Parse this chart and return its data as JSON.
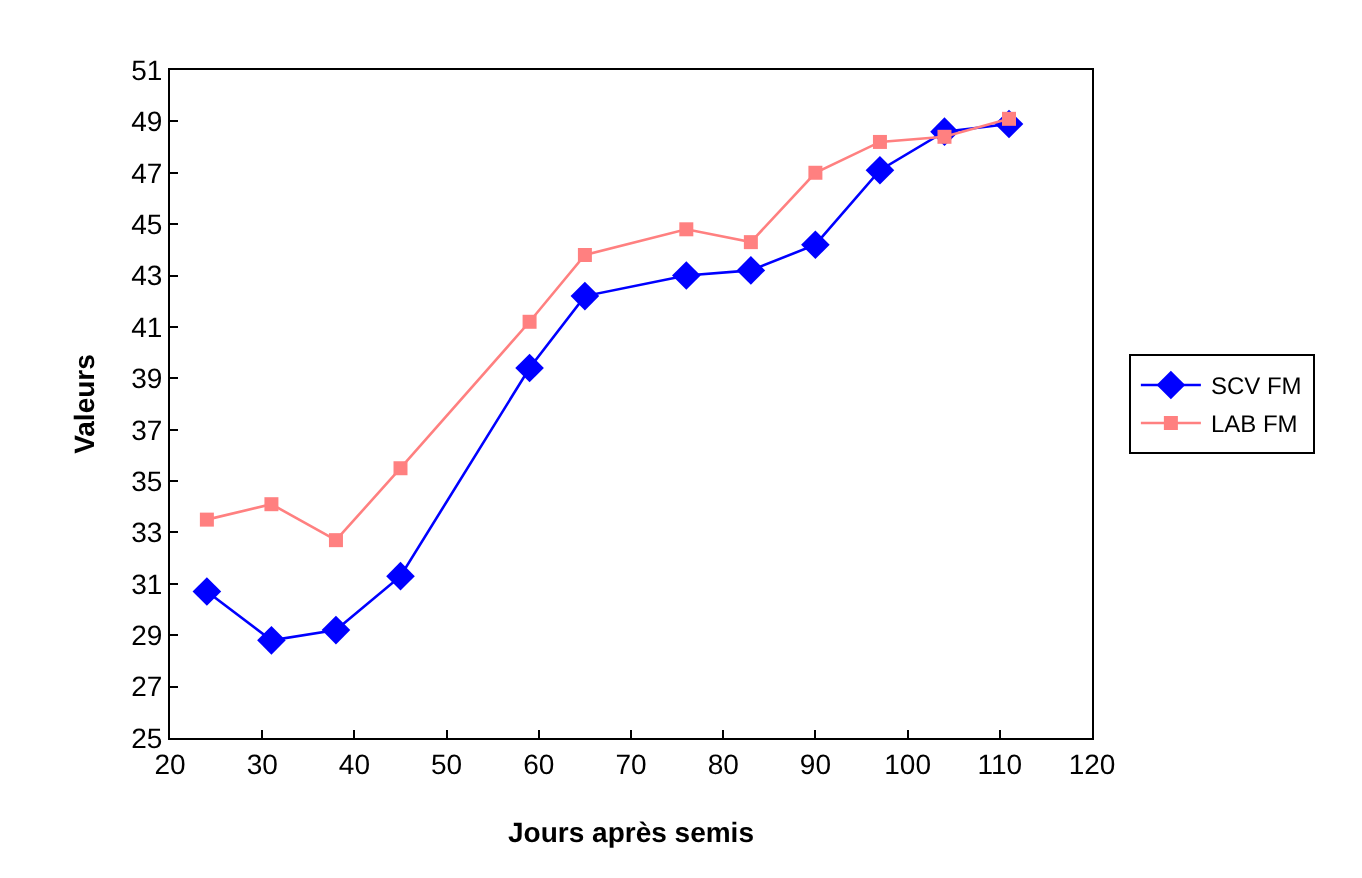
{
  "chart_data": {
    "type": "line",
    "xlabel": "Jours après semis",
    "ylabel": "Valeurs",
    "x": [
      24,
      31,
      38,
      45,
      59,
      65,
      76,
      83,
      90,
      97,
      104,
      111
    ],
    "series": [
      {
        "name": "SCV FM",
        "color": "#0000ff",
        "marker": "diamond",
        "values": [
          30.7,
          28.8,
          29.2,
          31.3,
          39.4,
          42.2,
          43.0,
          43.2,
          44.2,
          47.1,
          48.6,
          48.9
        ]
      },
      {
        "name": "LAB FM",
        "color": "#ff8080",
        "marker": "square",
        "values": [
          33.5,
          34.1,
          32.7,
          35.5,
          41.2,
          43.8,
          44.8,
          44.3,
          47.0,
          48.2,
          48.4,
          49.1
        ]
      }
    ],
    "xlim": [
      20,
      120
    ],
    "xticks": [
      20,
      30,
      40,
      50,
      60,
      70,
      80,
      90,
      100,
      110,
      120
    ],
    "ylim": [
      25,
      51
    ],
    "yticks": [
      25,
      27,
      29,
      31,
      33,
      35,
      37,
      39,
      41,
      43,
      45,
      47,
      49,
      51
    ],
    "grid": false,
    "legend": "right",
    "line_style": "solid"
  }
}
